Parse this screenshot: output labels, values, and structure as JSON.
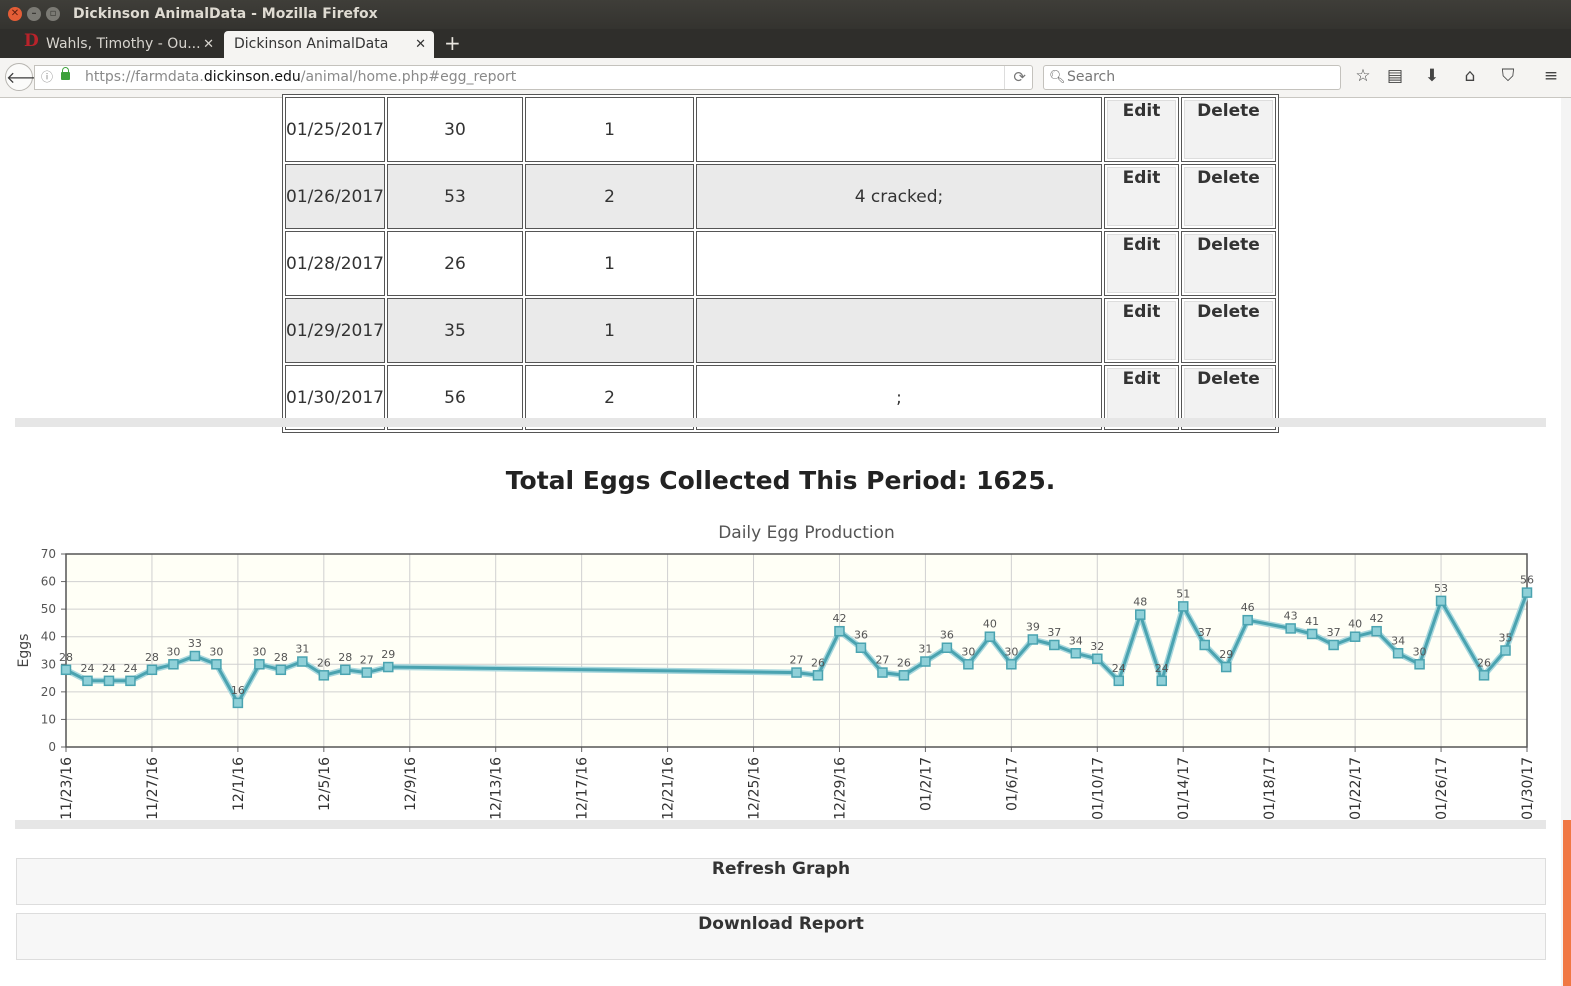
{
  "window": {
    "title": "Dickinson AnimalData - Mozilla Firefox"
  },
  "tabs": [
    {
      "label": "Wahls, Timothy - Ou...",
      "favicon": "D",
      "active": false
    },
    {
      "label": "Dickinson AnimalData",
      "active": true
    }
  ],
  "nav": {
    "url_prefix": "https://farmdata.",
    "url_domain": "dickinson.edu",
    "url_path": "/animal/home.php#egg_report",
    "search_placeholder": "Search"
  },
  "table": {
    "rows": [
      {
        "date": "01/25/2017",
        "eggs": "30",
        "collections": "1",
        "comments": "",
        "edit": "Edit",
        "delete": "Delete"
      },
      {
        "date": "01/26/2017",
        "eggs": "53",
        "collections": "2",
        "comments": "4 cracked;",
        "edit": "Edit",
        "delete": "Delete"
      },
      {
        "date": "01/28/2017",
        "eggs": "26",
        "collections": "1",
        "comments": "",
        "edit": "Edit",
        "delete": "Delete"
      },
      {
        "date": "01/29/2017",
        "eggs": "35",
        "collections": "1",
        "comments": "",
        "edit": "Edit",
        "delete": "Delete"
      },
      {
        "date": "01/30/2017",
        "eggs": "56",
        "collections": "2",
        "comments": ";",
        "edit": "Edit",
        "delete": "Delete"
      }
    ]
  },
  "total_text": "Total Eggs Collected This Period: 1625.",
  "buttons": {
    "refresh": "Refresh Graph",
    "download": "Download Report"
  },
  "colors": {
    "series": "#4aa3b0",
    "plot_bg": "#fffff6",
    "grid": "#d0d0d0",
    "scroll_thumb": "#f07844"
  },
  "chart_data": {
    "type": "line",
    "title": "Daily Egg Production",
    "xlabel": "",
    "ylabel": "Eggs",
    "ylim": [
      0,
      70
    ],
    "yticks": [
      0,
      10,
      20,
      30,
      40,
      50,
      60,
      70
    ],
    "xlim": [
      "2016-11-23",
      "2017-01-30"
    ],
    "xticks": [
      "11/23/16",
      "11/27/16",
      "12/1/16",
      "12/5/16",
      "12/9/16",
      "12/13/16",
      "12/17/16",
      "12/21/16",
      "12/25/16",
      "12/29/16",
      "01/2/17",
      "01/6/17",
      "01/10/17",
      "01/14/17",
      "01/18/17",
      "01/22/17",
      "01/26/17",
      "01/30/17"
    ],
    "grid": true,
    "data_labels": true,
    "series": [
      {
        "points": [
          [
            "2016-11-23",
            28
          ],
          [
            "2016-11-24",
            24
          ],
          [
            "2016-11-25",
            24
          ],
          [
            "2016-11-26",
            24
          ],
          [
            "2016-11-27",
            28
          ],
          [
            "2016-11-28",
            30
          ],
          [
            "2016-11-29",
            33
          ],
          [
            "2016-11-30",
            30
          ],
          [
            "2016-12-01",
            16
          ],
          [
            "2016-12-02",
            30
          ],
          [
            "2016-12-03",
            28
          ],
          [
            "2016-12-04",
            31
          ],
          [
            "2016-12-05",
            26
          ],
          [
            "2016-12-06",
            28
          ],
          [
            "2016-12-07",
            27
          ],
          [
            "2016-12-08",
            29
          ],
          [
            "2016-12-27",
            27
          ],
          [
            "2016-12-28",
            26
          ],
          [
            "2016-12-29",
            42
          ],
          [
            "2016-12-30",
            36
          ],
          [
            "2016-12-31",
            27
          ],
          [
            "2017-01-01",
            26
          ],
          [
            "2017-01-02",
            31
          ],
          [
            "2017-01-03",
            36
          ],
          [
            "2017-01-04",
            30
          ],
          [
            "2017-01-05",
            40
          ],
          [
            "2017-01-06",
            30
          ],
          [
            "2017-01-07",
            39
          ],
          [
            "2017-01-08",
            37
          ],
          [
            "2017-01-09",
            34
          ],
          [
            "2017-01-10",
            32
          ],
          [
            "2017-01-11",
            24
          ],
          [
            "2017-01-12",
            48
          ],
          [
            "2017-01-13",
            24
          ],
          [
            "2017-01-14",
            51
          ],
          [
            "2017-01-15",
            37
          ],
          [
            "2017-01-16",
            29
          ],
          [
            "2017-01-17",
            46
          ],
          [
            "2017-01-19",
            43
          ],
          [
            "2017-01-20",
            41
          ],
          [
            "2017-01-21",
            37
          ],
          [
            "2017-01-22",
            40
          ],
          [
            "2017-01-23",
            42
          ],
          [
            "2017-01-24",
            34
          ],
          [
            "2017-01-25",
            30
          ],
          [
            "2017-01-26",
            53
          ],
          [
            "2017-01-28",
            26
          ],
          [
            "2017-01-29",
            35
          ],
          [
            "2017-01-30",
            56
          ]
        ]
      }
    ]
  }
}
